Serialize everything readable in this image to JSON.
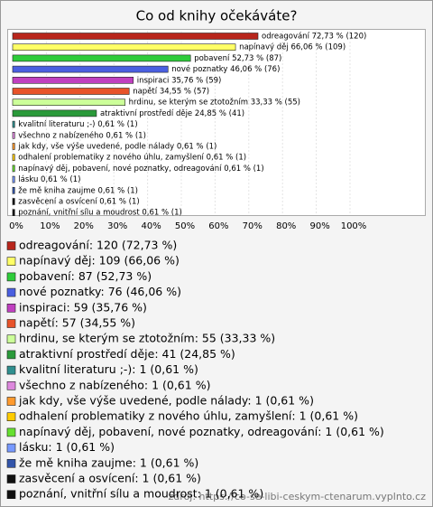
{
  "chart_data": {
    "type": "hbar",
    "title": "Co od knihy očekáváte?",
    "categories": [
      "odreagování",
      "napínavý děj",
      "pobavení",
      "nové poznatky",
      "inspiraci",
      "napětí",
      "hrdinu, se kterým se ztotožním",
      "atraktivní prostředí děje",
      "kvalitní literaturu ;-)",
      "všechno z nabízeného",
      "jak kdy, vše výše uvedené, podle nálady",
      "odhalení problematiky z nového úhlu, zamyšlení",
      "napínavý děj, pobavení, nové poznatky, odreagování",
      "lásku",
      "že mě kniha zaujme",
      "zasvěcení a osvícení",
      "poznání, vnitřní sílu a moudrost"
    ],
    "values": [
      72.73,
      66.06,
      52.73,
      46.06,
      35.76,
      34.55,
      33.33,
      24.85,
      0.61,
      0.61,
      0.61,
      0.61,
      0.61,
      0.61,
      0.61,
      0.61,
      0.61
    ],
    "value_labels": [
      "odreagování 72,73 % (120)",
      "napínavý děj 66,06 % (109)",
      "pobavení 52,73 % (87)",
      "nové poznatky 46,06 % (76)",
      "inspiraci 35,76 % (59)",
      "napětí 34,55 % (57)",
      "hrdinu, se kterým se ztotožním 33,33 % (55)",
      "atraktivní prostředí děje 24,85 % (41)",
      "kvalitní literaturu ;-) 0,61 % (1)",
      "všechno z nabízeného 0,61 % (1)",
      "jak kdy, vše výše uvedené, podle nálady 0,61 % (1)",
      "odhalení problematiky z nového úhlu, zamyšlení 0,61 % (1)",
      "napínavý děj, pobavení, nové poznatky, odreagování 0,61 % (1)",
      "lásku 0,61 % (1)",
      "že mě kniha zaujme 0,61 % (1)",
      "zasvěcení a osvícení 0,61 % (1)",
      "poznání, vnitřní sílu a moudrost 0,61 % (1)"
    ],
    "legend_labels": [
      "odreagování: 120 (72,73 %)",
      "napínavý děj: 109 (66,06 %)",
      "pobavení: 87 (52,73 %)",
      "nové poznatky: 76 (46,06 %)",
      "inspiraci: 59 (35,76 %)",
      "napětí: 57 (34,55 %)",
      "hrdinu, se kterým se ztotožním: 55 (33,33 %)",
      "atraktivní prostředí děje: 41 (24,85 %)",
      "kvalitní literaturu ;-): 1 (0,61 %)",
      "všechno z nabízeného: 1 (0,61 %)",
      "jak kdy, vše výše uvedené, podle nálady: 1 (0,61 %)",
      "odhalení problematiky z nového úhlu, zamyšlení: 1 (0,61 %)",
      "napínavý děj, pobavení, nové poznatky, odreagování: 1 (0,61 %)",
      "lásku: 1 (0,61 %)",
      "že mě kniha zaujme: 1 (0,61 %)",
      "zasvěcení a osvícení: 1 (0,61 %)",
      "poznání, vnitřní sílu a moudrost: 1 (0,61 %)"
    ],
    "colors": [
      "#b8261c",
      "#ffff66",
      "#2ecc3a",
      "#4a5fe0",
      "#c040c0",
      "#e8532a",
      "#ccff99",
      "#2a9a3a",
      "#2f8f8f",
      "#dd88dd",
      "#ff9a2e",
      "#ffcc00",
      "#66e030",
      "#7799ff",
      "#3355aa",
      "#111111",
      "#111111"
    ],
    "xlim": [
      0,
      100
    ],
    "xticks": [
      {
        "value": 0,
        "label": "0%"
      },
      {
        "value": 10,
        "label": "10%"
      },
      {
        "value": 20,
        "label": "20%"
      },
      {
        "value": 30,
        "label": "30%"
      },
      {
        "value": 40,
        "label": "40%"
      },
      {
        "value": 50,
        "label": "50%"
      },
      {
        "value": 60,
        "label": "60%"
      },
      {
        "value": 70,
        "label": "70%"
      },
      {
        "value": 80,
        "label": "80%"
      },
      {
        "value": 90,
        "label": "90%"
      },
      {
        "value": 100,
        "label": "100%"
      }
    ],
    "grid": true,
    "source": "zdroj: https://co-se-libi-ceskym-ctenarum.vyplnto.cz"
  }
}
